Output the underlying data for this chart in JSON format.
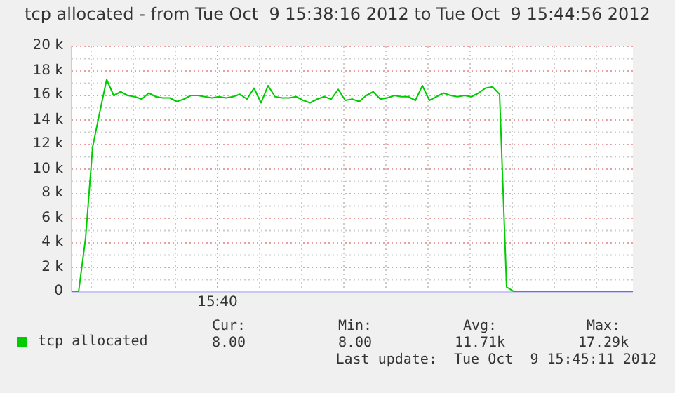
{
  "chart_data": {
    "type": "line",
    "title": "tcp allocated - from Tue Oct  9 15:38:16 2012 to Tue Oct  9 15:44:56 2012",
    "categories": [
      null,
      null,
      null,
      null,
      null,
      null,
      null,
      null,
      null,
      null,
      null,
      null,
      null,
      null,
      null,
      null,
      null,
      null,
      null,
      null,
      null,
      null,
      null,
      null,
      null,
      null,
      null,
      null,
      null,
      null,
      null,
      null,
      null,
      null,
      null,
      null,
      null,
      null,
      null,
      null,
      null,
      null,
      null,
      null,
      null,
      null,
      null,
      null,
      null,
      null,
      null,
      null,
      null,
      null,
      null,
      null,
      null,
      null,
      null,
      null,
      null,
      null,
      null,
      null,
      null,
      null,
      null,
      null,
      null,
      null,
      null,
      null,
      null,
      null,
      null,
      null,
      null,
      null,
      null,
      null,
      null
    ],
    "series": [
      {
        "name": "tcp allocated",
        "color": "#00cc00",
        "values": [
          0,
          0,
          4400,
          11800,
          14600,
          17300,
          16000,
          16300,
          16000,
          15900,
          15700,
          16200,
          15900,
          15800,
          15800,
          15500,
          15700,
          16000,
          16000,
          15900,
          15800,
          15900,
          15800,
          15900,
          16100,
          15700,
          16600,
          15400,
          16800,
          15900,
          15800,
          15800,
          15900,
          15600,
          15400,
          15700,
          15900,
          15700,
          16500,
          15600,
          15700,
          15500,
          16000,
          16300,
          15700,
          15800,
          16000,
          15900,
          15900,
          15600,
          16800,
          15600,
          15900,
          16200,
          16000,
          15900,
          16000,
          15900,
          16200,
          16600,
          16700,
          16100,
          400,
          50,
          8,
          8,
          8,
          8,
          8,
          8,
          8,
          8,
          8,
          8,
          8,
          8,
          8,
          8,
          8,
          8,
          8
        ]
      }
    ],
    "ylim": [
      0,
      20000
    ],
    "yticks": [
      0,
      {
        "value": 1000,
        "label": null
      },
      {
        "value": 2000,
        "label": "2 k"
      },
      {
        "value": 3000,
        "label": null
      },
      {
        "value": 4000,
        "label": "4 k"
      },
      {
        "value": 5000,
        "label": null
      },
      {
        "value": 6000,
        "label": "6 k"
      },
      {
        "value": 7000,
        "label": null
      },
      {
        "value": 8000,
        "label": "8 k"
      },
      {
        "value": 9000,
        "label": null
      },
      {
        "value": 10000,
        "label": "10 k"
      },
      {
        "value": 11000,
        "label": null
      },
      {
        "value": 12000,
        "label": "12 k"
      },
      {
        "value": 13000,
        "label": null
      },
      {
        "value": 14000,
        "label": "14 k"
      },
      {
        "value": 15000,
        "label": null
      },
      {
        "value": 16000,
        "label": "16 k"
      },
      {
        "value": 17000,
        "label": null
      },
      {
        "value": 18000,
        "label": "18 k"
      },
      {
        "value": 19000,
        "label": null
      },
      {
        "value": 20000,
        "label": "20 k"
      }
    ],
    "grid": true,
    "legend": "bottom left",
    "annotations": [
      "15:40",
      "Cur:",
      "Min:",
      "Avg:",
      "Max:",
      "8.00",
      "8.00",
      "11.71k",
      "17.29k",
      "Last update:  Tue Oct  9 15:45:11 2012"
    ]
  }
}
